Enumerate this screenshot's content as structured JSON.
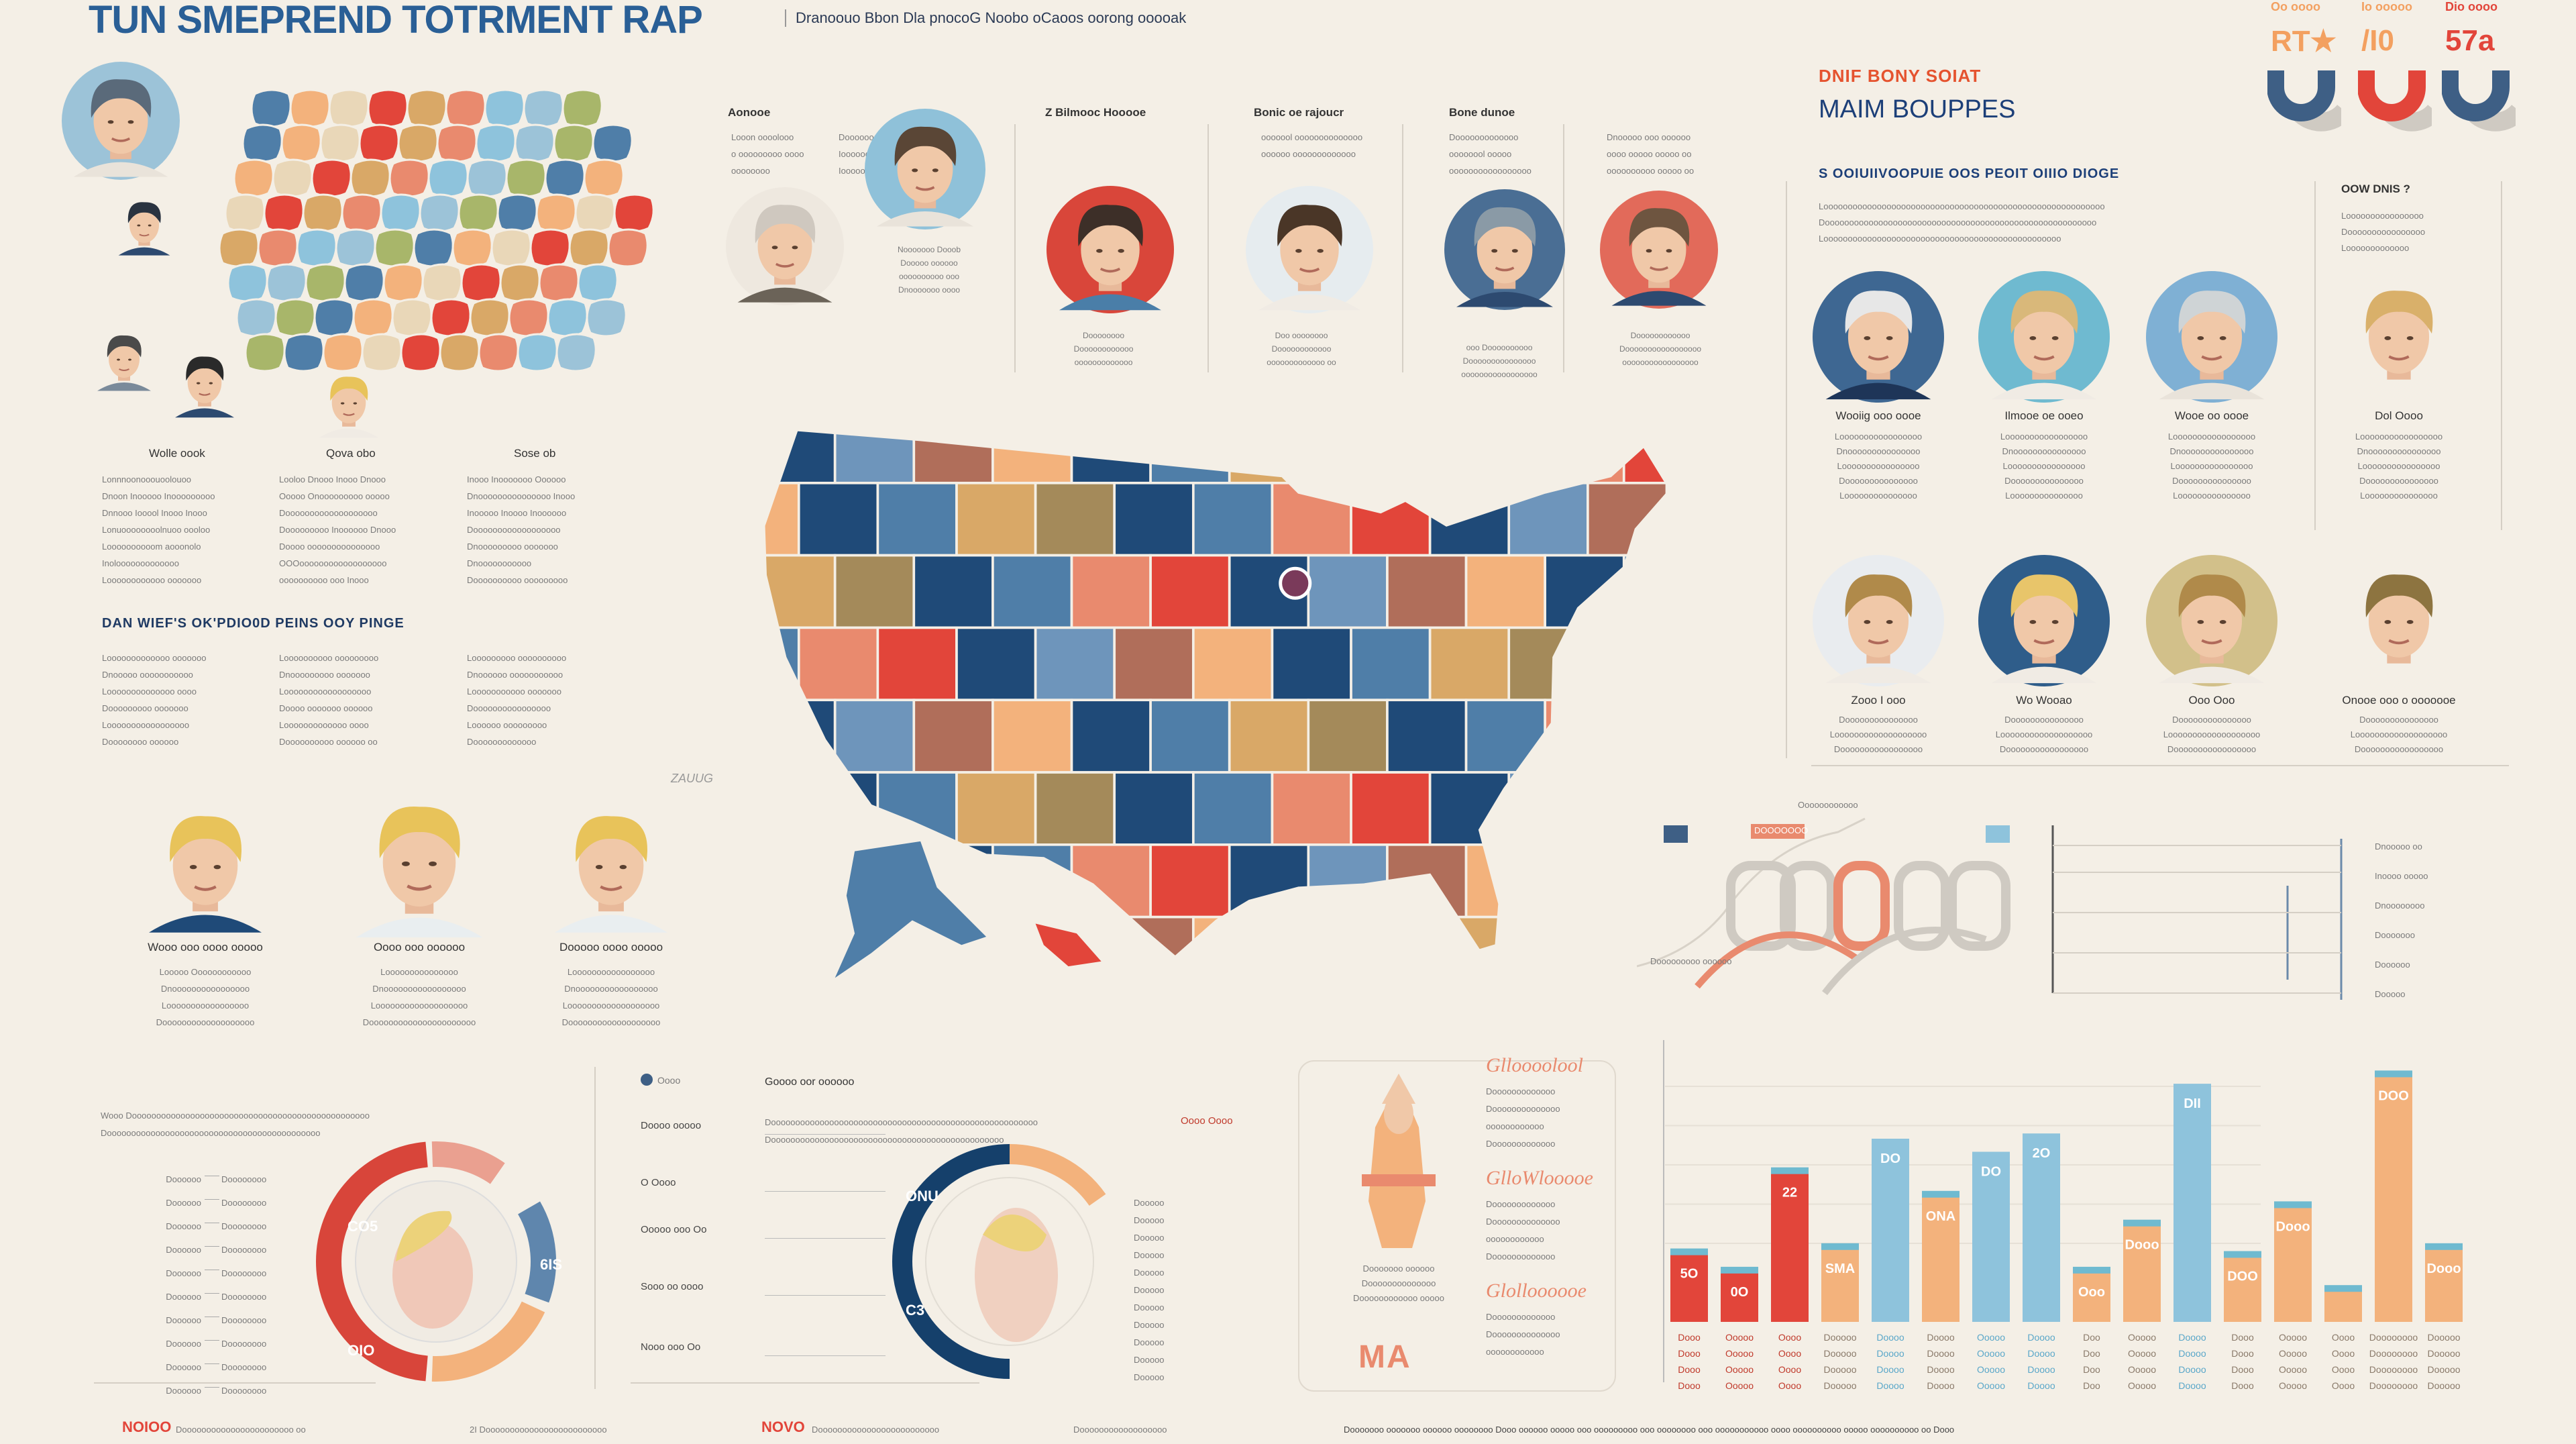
{
  "header": {
    "title": "TUN SMEPREND TOTRMENT RAP",
    "subtitle": "Dranoouo Bbon Dla pnocoG Noobo oCaoos oorong ooooak"
  },
  "palette": {
    "navy": "#1f4a78",
    "blue": "#4f7ea8",
    "lightblue": "#8ec3dc",
    "red": "#e2453a",
    "salmon": "#e98a6e",
    "orange": "#f3b27c",
    "tan": "#d9a867",
    "cream": "#f4efe6"
  },
  "top_left": {
    "labels": [
      "Wolle oook",
      "Qova obo",
      "Sose ob"
    ],
    "cols": [
      [
        "Lonnnoonooouoolouoo",
        "Dnoon Inooooo Inooooooooo",
        "Dnnooo Iooool Inooo Inooo",
        "Lonuoooooooolnuoo oooloo",
        "Loooooooooom aooonolo",
        "Inolooooooooooooo",
        "Loooooooooooo ooooooo"
      ],
      [
        "Looloo Dnooo Inooo Dnooo",
        "Ooooo Onooooooooo ooooo",
        "Dooooooooooooooooooo",
        "Dooooooooo Inoooooo Dnooo",
        "Doooo ooooooooooooooo",
        "OOOoooooooooooooooooo",
        "oooooooooo ooo Inooo"
      ],
      [
        "Inooo Inooooooo Oooooo",
        "Dnooooooooooooooo Inooo",
        "Inooooo Inoooo Inoooooo",
        "Doooooooooooooooooo",
        "Dnooooooooo ooooooo",
        "Dnooooooooooo",
        "Doooooooooo ooooooooo"
      ]
    ]
  },
  "mid_left": {
    "heading": "DAN WIEF'S OK'PDIO0D PEINS OOY PINGE",
    "cols": [
      [
        "Looooooooooooo ooooooo",
        "Dnooooo ooooooooooo",
        "Loooooooooooooo oooo",
        "Dooooooooo ooooooo",
        "Looooooooooooooooo",
        "Doooooooo oooooo"
      ],
      [
        "Loooooooooo ooooooooo",
        "Dnooooooooo ooooooo",
        "Loooooooooooooooooo",
        "Doooo ooooooo oooooo",
        "Looooooooooooo oooo",
        "Doooooooooo oooooo oo"
      ],
      [
        "Looooooooo oooooooooo",
        "Dnoooooo ooooooooooo",
        "Looooooooooo ooooooo",
        "Doooooooooooooooo",
        "Loooooo ooooooooo",
        "Dooooooooooooo"
      ]
    ]
  },
  "blond_row": {
    "labels": [
      "Wooo ooo oooo ooooo",
      "Oooo ooo oooooo",
      "Dooooo oooo ooooo"
    ],
    "cols": [
      [
        "Looooo Oooooooooooo",
        "Dnoooooooooooooooo",
        "Looooooooooooooooo",
        "Dooooooooooooooooooo"
      ],
      [
        "Looooooooooooooo",
        "Dnooooooooooooooooo",
        "Looooooooooooooooooo",
        "Doooooooooooooooooooooo"
      ],
      [
        "Looooooooooooooooo",
        "Dnooooooooooooooooo",
        "Looooooooooooooooooo",
        "Dooooooooooooooooooo"
      ]
    ]
  },
  "center_top": {
    "headings": [
      "Aonooe",
      "Z Bilmooc Hooooe",
      "Bonic oe rajoucr",
      "Bone dunoe"
    ],
    "cols": [
      [
        "Looon oooolooo",
        "o ooooooooo oooo",
        "oooooooo"
      ],
      [
        "Doooooooooooooo",
        "Ioooooo ooooooo",
        "Iooooooooooooo"
      ],
      [
        "ooooool oooooooooooooo",
        "oooooo ooooooooooooo"
      ],
      [
        "Dooooooooooooo",
        "oooooool ooooo",
        "ooooooooooooooooo"
      ],
      [
        "Dnooooo ooo oooooo",
        "oooo ooooo ooooo oo",
        "oooooooooo ooooo oo"
      ]
    ],
    "captions": [
      [
        "Nooooooo Dooob",
        "Dooooo oooooo",
        "oooooooooo ooo",
        "Dnooooooo oooo"
      ],
      [
        "Doooooooo",
        "Doooooooooooo",
        "ooooooooooooo"
      ],
      [
        "Doo oooooooo",
        "Doooooooooooo",
        "ooooooooooooo oo"
      ],
      [
        "ooo Doooooooooo",
        "Dooooooooooooooo",
        "ooooooooooooooooo"
      ],
      [
        "Doooooooooooo",
        "Dooooooooooooooooo",
        "ooooooooooooooooo"
      ]
    ],
    "face_colors": [
      {
        "bg": "#8fc1d9",
        "hair": "#5a4636",
        "shirt": "#e9e3da"
      },
      {
        "bg": "#eee8df",
        "hair": "#cfc8bf",
        "shirt": "#6b6358"
      },
      {
        "bg": "#d9463a",
        "hair": "#3d2f28",
        "shirt": "#4a7ea8"
      },
      {
        "bg": "#e6ecef",
        "hair": "#4a3627",
        "shirt": "#f0ebe4"
      },
      {
        "bg": "#4a6e94",
        "hair": "#8a9aa6",
        "shirt": "#2d4a70"
      },
      {
        "bg": "#e26a5a",
        "hair": "#6e5540",
        "shirt": "#2d4a70"
      }
    ]
  },
  "map": {
    "label": "ZAUUG",
    "tile_colors": [
      "#1f4a78",
      "#4f7ea8",
      "#e98a6e",
      "#f3b27c",
      "#1f4a78",
      "#6e95bb",
      "#d9a867",
      "#e2453a",
      "#1f4a78",
      "#4f7ea8",
      "#b06e5a",
      "#a48a5a"
    ]
  },
  "right": {
    "kicker": "DNIF BONY SOIAT",
    "title": "MAIM BOUPPES",
    "stats": [
      "RT★",
      "/I0",
      "57a"
    ],
    "stat_labels": [
      "Oo oooo",
      "Io ooooo",
      "Dio oooo"
    ],
    "heading": "S OOIUIIVOOPUIE OOS PEOIT OIIIO DIOGE",
    "intro": [
      "Loooooooooooooooooooooooooooooooooooooooooooooooooooooooooo",
      "Doooooooooooooooooooooooooooooooooooooooooooooooooooooooo",
      "Looooooooooooooooooooooooooooooooooooooooooooooooo"
    ],
    "side_heading": "OOW DNIS ?",
    "side_text": [
      "Loooooooooooooooo",
      "Doooooooooooooooo",
      "Looooooooooooo"
    ],
    "people_row1": [
      {
        "name": "Wooiig ooo oooe",
        "lines": [
          "Looooooooooooooooo",
          "Dnooooooooooooooo",
          "Loooooooooooooooo",
          "Dooooooooooooooo",
          "Looooooooooooooo"
        ],
        "bg": "#3e6792",
        "hair": "#e7e7e7",
        "shirt": "#1e3558"
      },
      {
        "name": "Ilmooe oe ooeo",
        "lines": [
          "Looooooooooooooooo",
          "Dnooooooooooooooo",
          "Loooooooooooooooo",
          "Dooooooooooooooo",
          "Looooooooooooooo"
        ],
        "bg": "#6fbad0",
        "hair": "#d9b87a",
        "shirt": "#f0ebe4"
      },
      {
        "name": "Wooe oo oooe",
        "lines": [
          "Looooooooooooooooo",
          "Dnooooooooooooooo",
          "Loooooooooooooooo",
          "Dooooooooooooooo",
          "Looooooooooooooo"
        ],
        "bg": "#7fb0d4",
        "hair": "#cfd4d6",
        "shirt": "#e9e3da"
      },
      {
        "name": "Dol Oooo",
        "lines": [
          "Looooooooooooooooo",
          "Dnooooooooooooooo",
          "Loooooooooooooooo",
          "Dooooooooooooooo",
          "Looooooooooooooo"
        ],
        "bg": "none",
        "hair": "#d9b06a",
        "shirt": "#f4efe6"
      }
    ],
    "people_row2": [
      {
        "name": "Zooo I ooo",
        "lines": [
          "Dooooooooooooooo",
          "Looooooooooooooooooo",
          "Dooooooooooooooooo"
        ],
        "bg": "#e9ecef",
        "hair": "#b08a4a",
        "shirt": "#f0ebe4"
      },
      {
        "name": "Wo Wooao",
        "lines": [
          "Dooooooooooooooo",
          "Looooooooooooooooooo",
          "Dooooooooooooooooo"
        ],
        "bg": "#2f5d8a",
        "hair": "#e8c56a",
        "shirt": "#f0ebe4"
      },
      {
        "name": "Ooo Ooo",
        "lines": [
          "Dooooooooooooooo",
          "Looooooooooooooooooo",
          "Dooooooooooooooooo"
        ],
        "bg": "#d2c08a",
        "hair": "#b08a4a",
        "shirt": "#f0ebe4"
      },
      {
        "name": "Onooe ooo o ooooooe",
        "lines": [
          "Dooooooooooooooo",
          "Looooooooooooooooooo",
          "Dooooooooooooooooo"
        ],
        "bg": "none",
        "hair": "#8d7440",
        "shirt": "#f4efe6"
      }
    ],
    "mini_chart": {
      "title": "Oooooooooooo",
      "badge": "DOOOOOOO",
      "legend": [
        "Dnooooo oo",
        "Inoooo ooooo",
        "Dnoooooooo",
        "Dooooooo",
        "Doooooo",
        "Dooooo"
      ],
      "caption": "Dooooooooo oooooo"
    }
  },
  "bottom_left": {
    "intro": [
      "Wooo Dooooooooooooooooooooooooooooooooooooooooooooooooo",
      "Doooooooooooooooooooooooooooooooooooooooooooo"
    ],
    "legend_left": [
      "Doooooo",
      "Doooooo",
      "Doooooo",
      "Doooooo",
      "Doooooo",
      "Doooooo",
      "Doooooo",
      "Doooooo",
      "Doooooo",
      "Doooooo"
    ],
    "legend_right": [
      "Doooooooo",
      "Doooooooo",
      "Doooooooo",
      "Doooooooo",
      "Doooooooo",
      "Doooooooo",
      "Doooooooo",
      "Doooooooo",
      "Doooooooo",
      "Doooooooo"
    ],
    "donut_labels": [
      "CO5",
      "OIO",
      "6IS"
    ]
  },
  "bottom_center": {
    "legend_dot": "Oooo",
    "heading": "Goooo oor oooooo",
    "intro": [
      "Dooooooooooooooooooooooooooooooooooooooooooooooooooooooo",
      "Doooooooooooooooooooooooooooooooooooooooooooooooo"
    ],
    "highlight": "Oooo Oooo",
    "row_labels": [
      "Doooo ooooo",
      "O Oooo",
      "Ooooo ooo Oo",
      "Sooo oo oooo",
      "Nooo ooo Oo"
    ],
    "donut_labels": [
      "ONU",
      "C3"
    ],
    "legend": [
      "Dooooo",
      "Dooooo",
      "Dooooo",
      "Dooooo",
      "Dooooo",
      "Dooooo",
      "Dooooo",
      "Dooooo",
      "Dooooo",
      "Dooooo",
      "Dooooo"
    ]
  },
  "poster": {
    "script_labels": [
      "Glloooolool",
      "GlloWlooooe",
      "Glolloooooe"
    ],
    "lines": [
      "Dooooooooooooo",
      "Doooooooooooooo",
      "oooooooooooo",
      "Dooooooooooooo"
    ],
    "caption": [
      "Dooooooo oooooo",
      "Doooooooooooooo",
      "Doooooooooooo ooooo"
    ],
    "logo": "MA"
  },
  "chart_data": {
    "type": "bar",
    "title": "",
    "xlabel": "",
    "ylabel": "",
    "ylim": [
      0,
      100
    ],
    "grid": true,
    "categories": [
      "Dooo",
      "Ooooo",
      "Oooo",
      "Dooooo",
      "Doooo",
      "Doooo",
      "Ooooo",
      "Doooo",
      "Doo",
      "Ooooo",
      "Doooo",
      "Dooo",
      "Ooooo",
      "Oooo",
      "Doooooooo",
      "Dooooo"
    ],
    "values": [
      26,
      19,
      57,
      28,
      70,
      48,
      65,
      72,
      19,
      37,
      91,
      25,
      44,
      12,
      94,
      28
    ],
    "bar_colors": [
      "#e2453a",
      "#e2453a",
      "#e2453a",
      "#f3b27c",
      "#8ec3dc",
      "#f3b27c",
      "#8ec3dc",
      "#8ec3dc",
      "#f3b27c",
      "#f3b27c",
      "#8ec3dc",
      "#f3b27c",
      "#f3b27c",
      "#f3b27c",
      "#f3b27c",
      "#f3b27c"
    ],
    "value_labels": [
      "5O",
      "0O",
      "22",
      "SMA",
      "DO",
      "ONA",
      "DO",
      "2O",
      "Ooo",
      "Dooo",
      "DII",
      "DOO",
      "Dooo",
      "",
      "DOO",
      "Dooo"
    ]
  },
  "footer": {
    "note1_tag": "NOIOO",
    "note1": "Dooooooooooooooooooooooo oo",
    "note2": "2I Dooooooooooooooooooooooooo",
    "note3_tag": "NOVO",
    "note3": "Dooooooooooooooooooooooooo",
    "note4": "Doooooooooooooooooo",
    "note5": "Dooooooo ooooooo oooooo oooooooo Dooo oooooo ooooo ooo ooooooooo ooo oooooooo ooo ooooooooooo oooo oooooooooo ooooo oooooooooo oo Dooo"
  }
}
